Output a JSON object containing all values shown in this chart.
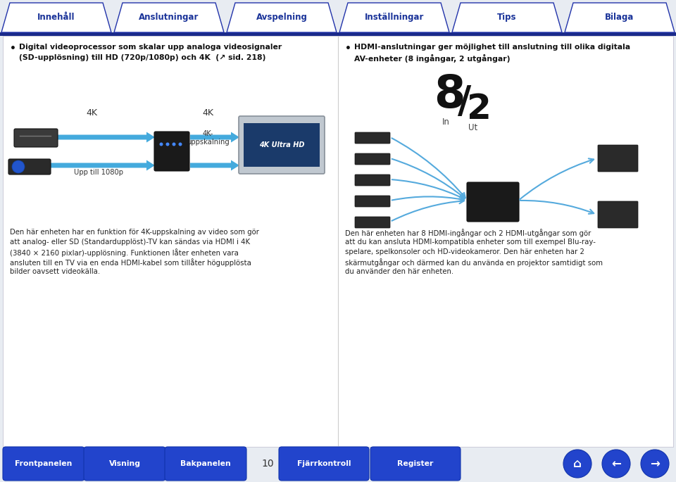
{
  "outer_bg": "#e8ecf2",
  "page_bg": "#ffffff",
  "top_nav": {
    "tabs": [
      "Innehåll",
      "Anslutningar",
      "Avspelning",
      "Inställningar",
      "Tips",
      "Bilaga"
    ],
    "bar_color": "#1a2a8a",
    "tab_text_color": "#1a3399"
  },
  "bottom_nav": {
    "left_buttons": [
      "Frontpanelen",
      "Visning",
      "Bakpanelen"
    ],
    "right_buttons": [
      "Fjärrkontroll",
      "Register"
    ],
    "page_num": "10",
    "btn_color": "#2244cc",
    "btn_border": "#1133aa"
  },
  "left_bullet": [
    "Digital videoprocessor som skalar upp analoga videosignaler",
    "(SD-upplösning) till HD (720p/1080p) och 4K  (↗ sid. 218)"
  ],
  "left_diagram": {
    "label_4k_1": "4K",
    "label_4k_2": "4K",
    "label_upp": "Upp till 1080p",
    "label_upscale": "4K-\nuppskalning",
    "arrow_color": "#44aadd"
  },
  "left_description": [
    "Den här enheten har en funktion för 4K-uppskalning av video som gör",
    "att analog- eller SD (Standardupplöst)-TV kan sändas via HDMI i 4K",
    "(3840 × 2160 pixlar)-upplösning. Funktionen låter enheten vara",
    "ansluten till en TV via en enda HDMI-kabel som tillåter högupplösta",
    "bilder oavsett videokälla."
  ],
  "right_bullet": [
    "HDMI-anslutningar ger möjlighet till anslutning till olika digitala",
    "AV-enheter (8 ingångar, 2 utgångar)"
  ],
  "right_io": {
    "big": "8",
    "slash": "/",
    "small": "2",
    "in_label": "In",
    "out_label": "Ut",
    "number_color": "#111111"
  },
  "right_description": [
    "Den här enheten har 8 HDMI-ingångar och 2 HDMI-utgångar som gör",
    "att du kan ansluta HDMI-kompatibla enheter som till exempel Blu-ray-",
    "spelare, spelkonsoler och HD-videokameror. Den här enheten har 2",
    "skärmutgångar och därmed kan du använda en projektor samtidigt som",
    "du använder den här enheten."
  ],
  "divider_color": "#cccccc",
  "text_color": "#222222",
  "bold_text_color": "#111111"
}
